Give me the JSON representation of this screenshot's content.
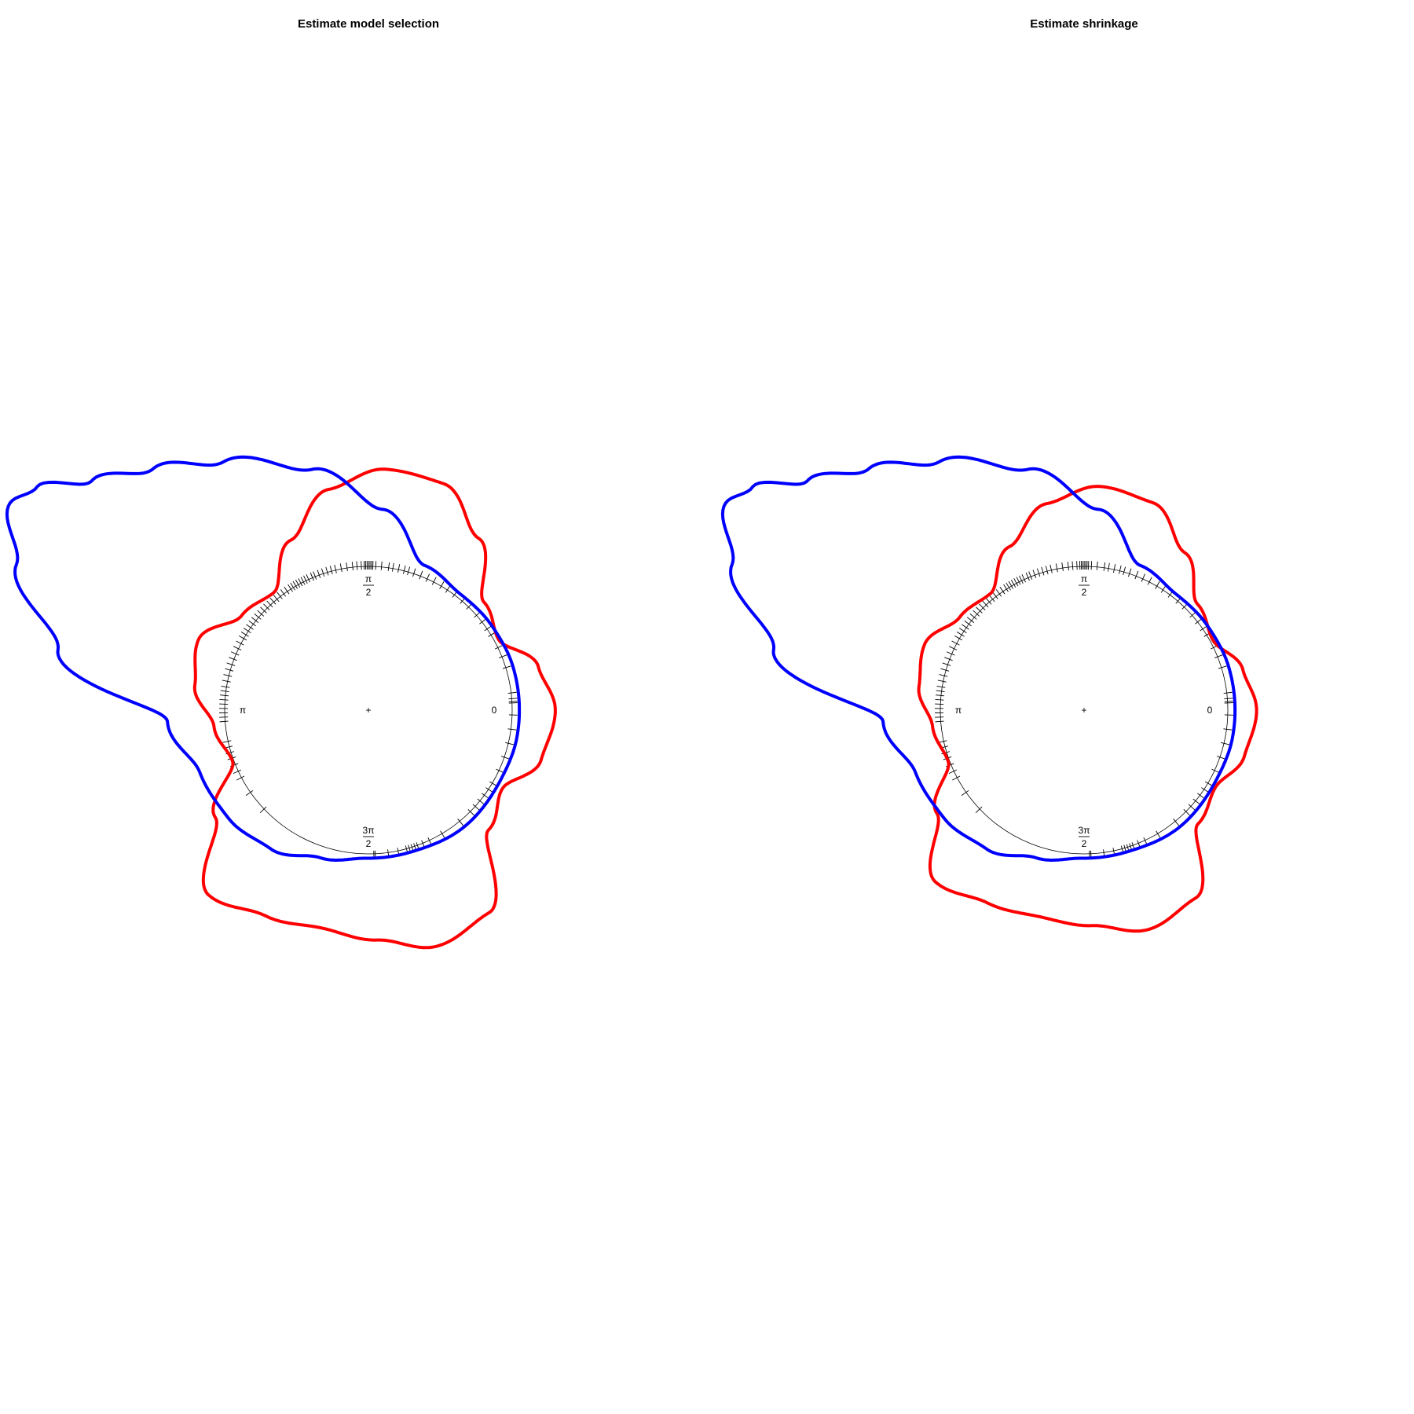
{
  "chart_data": [
    {
      "type": "line",
      "title": "Estimate model selection",
      "axis": "circular",
      "angle_labels": [
        {
          "angle": 0,
          "label": "0"
        },
        {
          "angle": 1.5708,
          "num": "π",
          "den": "2"
        },
        {
          "angle": 3.1416,
          "label": "π"
        },
        {
          "angle": 4.7124,
          "num": "3π",
          "den": "2"
        }
      ],
      "center_marker": "+",
      "colors": {
        "red": "#ff0000",
        "blue": "#0000ff"
      },
      "series": [
        {
          "color": "#ff0000",
          "radius_profile": {
            "theta": [
              0.0,
              0.25,
              0.5,
              0.75,
              1.0,
              1.25,
              1.5,
              1.75,
              2.0,
              2.25,
              2.5,
              2.75,
              3.0,
              3.25,
              3.5,
              3.75,
              4.0,
              4.25,
              4.5,
              4.75,
              5.0,
              5.25,
              5.5,
              5.75,
              6.0,
              6.2832
            ],
            "r": [
              1.3,
              1.22,
              1.03,
              1.1,
              1.42,
              1.66,
              1.68,
              1.56,
              1.3,
              1.05,
              1.1,
              1.28,
              1.22,
              1.08,
              1.01,
              1.3,
              1.7,
              1.6,
              1.55,
              1.6,
              1.71,
              1.64,
              1.18,
              1.08,
              1.25,
              1.3
            ]
          }
        },
        {
          "color": "#0000ff",
          "radius_profile": {
            "theta": [
              0.0,
              0.3,
              0.6,
              0.9,
              1.2,
              1.5,
              1.8,
              2.1,
              2.3,
              2.45,
              2.55,
              2.62,
              2.75,
              2.95,
              3.2,
              3.5,
              3.8,
              4.1,
              4.4,
              4.7,
              5.0,
              5.4,
              5.8,
              6.1,
              6.2832
            ],
            "r": [
              1.05,
              1.05,
              1.04,
              1.03,
              1.08,
              1.4,
              1.72,
              2.0,
              2.25,
              2.5,
              2.78,
              2.88,
              2.65,
              2.2,
              1.4,
              1.25,
              1.23,
              1.18,
              1.08,
              1.03,
              1.03,
              1.05,
              1.04,
              1.05,
              1.05
            ]
          }
        }
      ],
      "rug_angles": [
        0.05,
        0.06,
        0.08,
        0.12,
        0.3,
        0.38,
        0.45,
        0.55,
        0.6,
        0.66,
        0.72,
        0.8,
        0.86,
        0.93,
        0.99,
        1.04,
        1.1,
        1.15,
        1.2,
        1.25,
        1.29,
        1.32,
        1.36,
        1.4,
        1.43,
        1.48,
        1.52,
        1.54,
        1.55,
        1.56,
        1.57,
        1.58,
        1.59,
        1.6,
        1.62,
        1.65,
        1.68,
        1.72,
        1.76,
        1.8,
        1.83,
        1.86,
        1.89,
        1.92,
        1.95,
        1.97,
        2.0,
        2.02,
        2.04,
        2.06,
        2.08,
        2.1,
        2.12,
        2.14,
        2.17,
        2.2,
        2.23,
        2.26,
        2.29,
        2.32,
        2.35,
        2.38,
        2.41,
        2.44,
        2.47,
        2.5,
        2.53,
        2.56,
        2.59,
        2.62,
        2.66,
        2.7,
        2.74,
        2.78,
        2.82,
        2.86,
        2.9,
        2.94,
        2.98,
        3.01,
        3.04,
        3.07,
        3.1,
        3.13,
        3.16,
        3.19,
        3.22,
        3.36,
        3.4,
        3.44,
        3.48,
        3.53,
        3.58,
        3.63,
        3.75,
        3.9,
        4.75,
        4.76,
        4.85,
        4.92,
        4.98,
        5.0,
        5.02,
        5.04,
        5.06,
        5.1,
        5.15,
        5.25,
        5.4,
        5.5,
        5.55,
        5.6,
        5.65,
        5.7,
        5.75,
        5.85,
        5.95,
        6.05,
        6.15,
        6.25
      ]
    },
    {
      "type": "line",
      "title": "Estimate shrinkage",
      "axis": "circular",
      "angle_labels": [
        {
          "angle": 0,
          "label": "0"
        },
        {
          "angle": 1.5708,
          "num": "π",
          "den": "2"
        },
        {
          "angle": 3.1416,
          "label": "π"
        },
        {
          "angle": 4.7124,
          "num": "3π",
          "den": "2"
        }
      ],
      "center_marker": "+",
      "colors": {
        "red": "#ff0000",
        "blue": "#0000ff"
      },
      "series": [
        {
          "color": "#ff0000",
          "radius_profile": {
            "theta": [
              0.0,
              0.25,
              0.5,
              0.75,
              1.0,
              1.25,
              1.5,
              1.75,
              2.0,
              2.25,
              2.5,
              2.75,
              3.0,
              3.25,
              3.5,
              3.75,
              4.0,
              4.25,
              4.5,
              4.75,
              5.0,
              5.25,
              5.5,
              5.75,
              6.0,
              6.2832
            ],
            "r": [
              1.2,
              1.14,
              1.02,
              1.08,
              1.3,
              1.52,
              1.56,
              1.46,
              1.25,
              1.04,
              1.08,
              1.2,
              1.16,
              1.06,
              1.01,
              1.25,
              1.58,
              1.5,
              1.47,
              1.5,
              1.59,
              1.52,
              1.12,
              1.06,
              1.16,
              1.2
            ]
          }
        },
        {
          "color": "#0000ff",
          "radius_profile": {
            "theta": [
              0.0,
              0.3,
              0.6,
              0.9,
              1.2,
              1.5,
              1.8,
              2.1,
              2.3,
              2.45,
              2.55,
              2.62,
              2.75,
              2.95,
              3.2,
              3.5,
              3.8,
              4.1,
              4.4,
              4.7,
              5.0,
              5.4,
              5.8,
              6.1,
              6.2832
            ],
            "r": [
              1.05,
              1.05,
              1.04,
              1.03,
              1.08,
              1.4,
              1.72,
              2.0,
              2.25,
              2.5,
              2.78,
              2.88,
              2.65,
              2.2,
              1.4,
              1.25,
              1.23,
              1.18,
              1.08,
              1.03,
              1.03,
              1.05,
              1.04,
              1.05,
              1.05
            ]
          }
        }
      ],
      "rug_angles": [
        0.05,
        0.06,
        0.08,
        0.12,
        0.3,
        0.38,
        0.45,
        0.55,
        0.6,
        0.66,
        0.72,
        0.8,
        0.86,
        0.93,
        0.99,
        1.04,
        1.1,
        1.15,
        1.2,
        1.25,
        1.29,
        1.32,
        1.36,
        1.4,
        1.43,
        1.48,
        1.52,
        1.54,
        1.55,
        1.56,
        1.57,
        1.58,
        1.59,
        1.6,
        1.62,
        1.65,
        1.68,
        1.72,
        1.76,
        1.8,
        1.83,
        1.86,
        1.89,
        1.92,
        1.95,
        1.97,
        2.0,
        2.02,
        2.04,
        2.06,
        2.08,
        2.1,
        2.12,
        2.14,
        2.17,
        2.2,
        2.23,
        2.26,
        2.29,
        2.32,
        2.35,
        2.38,
        2.41,
        2.44,
        2.47,
        2.5,
        2.53,
        2.56,
        2.59,
        2.62,
        2.66,
        2.7,
        2.74,
        2.78,
        2.82,
        2.86,
        2.9,
        2.94,
        2.98,
        3.01,
        3.04,
        3.07,
        3.1,
        3.13,
        3.16,
        3.19,
        3.22,
        3.36,
        3.4,
        3.44,
        3.48,
        3.53,
        3.58,
        3.63,
        3.75,
        3.9,
        4.75,
        4.76,
        4.85,
        4.92,
        4.98,
        5.0,
        5.02,
        5.04,
        5.06,
        5.1,
        5.15,
        5.25,
        5.4,
        5.5,
        5.55,
        5.6,
        5.65,
        5.7,
        5.75,
        5.85,
        5.95,
        6.05,
        6.15,
        6.25
      ]
    }
  ]
}
